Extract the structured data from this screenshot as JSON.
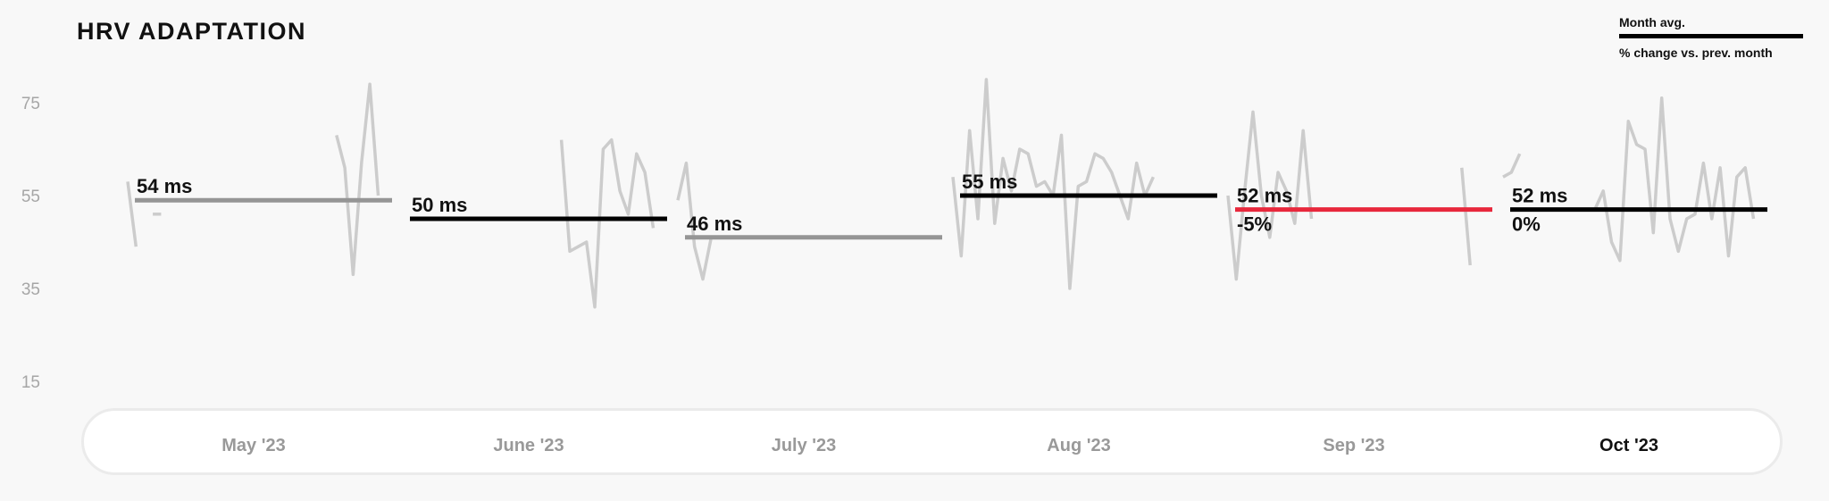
{
  "header": {
    "title": "HRV ADAPTATION"
  },
  "legend": {
    "avg_label": "Month avg.",
    "change_label": "% change vs. prev. month"
  },
  "colors": {
    "raw_line": "#cccccc",
    "avg_past": "#959595",
    "avg_current": "#000000",
    "avg_decrease": "#e8283c",
    "text": "#111111"
  },
  "chart_data": {
    "type": "line",
    "title": "HRV ADAPTATION",
    "y_ticks": [
      75,
      55,
      35,
      15
    ],
    "y_range": [
      15,
      75
    ],
    "x_categories": [
      "May '23",
      "June '23",
      "July '23",
      "Aug '23",
      "Sep '23",
      "Oct '23"
    ],
    "active_month": "Oct '23",
    "monthly": [
      {
        "month": "May '23",
        "avg": 54,
        "avg_label": "54 ms",
        "change": "",
        "style": "past"
      },
      {
        "month": "June '23",
        "avg": 50,
        "avg_label": "50 ms",
        "change": "",
        "style": "current"
      },
      {
        "month": "July '23",
        "avg": 46,
        "avg_label": "46 ms",
        "change": "",
        "style": "past"
      },
      {
        "month": "Aug '23",
        "avg": 55,
        "avg_label": "55 ms",
        "change": "",
        "style": "current"
      },
      {
        "month": "Sep '23",
        "avg": 52,
        "avg_label": "52 ms",
        "change": "-5%",
        "style": "decrease"
      },
      {
        "month": "Oct '23",
        "avg": 52,
        "avg_label": "52 ms",
        "change": "0%",
        "style": "current"
      }
    ],
    "daily_segments": [
      {
        "month": "May '23",
        "x": [
          0,
          1
        ],
        "y": [
          58,
          44
        ]
      },
      {
        "month": "May '23",
        "x": [
          3,
          4
        ],
        "y": [
          51,
          51
        ]
      },
      {
        "month": "May '23",
        "x": [
          25,
          26,
          27,
          28,
          29,
          30
        ],
        "y": [
          68,
          61,
          38,
          62,
          79,
          55
        ]
      },
      {
        "month": "June '23",
        "x": [
          19,
          20,
          21,
          22,
          23,
          24,
          25,
          26,
          27,
          28,
          29,
          30
        ],
        "y": [
          67,
          43,
          44,
          45,
          31,
          65,
          67,
          56,
          51,
          64,
          60,
          48
        ]
      },
      {
        "month": "July '23",
        "x": [
          0,
          1,
          2,
          3,
          4
        ],
        "y": [
          54,
          62,
          44,
          37,
          46
        ]
      },
      {
        "month": "Aug '23",
        "x": [
          0,
          1,
          2,
          3,
          4,
          5,
          6,
          7,
          8,
          9,
          10,
          11,
          12,
          13,
          14,
          15,
          16,
          17,
          18,
          19,
          20,
          21,
          22,
          23,
          24
        ],
        "y": [
          59,
          42,
          69,
          50,
          80,
          49,
          63,
          56,
          65,
          64,
          57,
          58,
          55,
          68,
          35,
          57,
          58,
          64,
          63,
          60,
          55,
          50,
          62,
          55,
          59
        ]
      },
      {
        "month": "Sep '23",
        "x": [
          0,
          1,
          2,
          3,
          4,
          5,
          6,
          7,
          8,
          9,
          10
        ],
        "y": [
          55,
          37,
          56,
          73,
          55,
          46,
          60,
          56,
          49,
          69,
          50
        ]
      },
      {
        "month": "Sep '23",
        "x": [
          28,
          29
        ],
        "y": [
          61,
          40
        ]
      },
      {
        "month": "Oct '23",
        "x": [
          0,
          1,
          2
        ],
        "y": [
          59,
          60,
          64
        ]
      },
      {
        "month": "Oct '23",
        "x": [
          11,
          12,
          13,
          14,
          15,
          16,
          17,
          18,
          19,
          20,
          21,
          22,
          23,
          24,
          25,
          26,
          27,
          28,
          29,
          30
        ],
        "y": [
          52,
          56,
          45,
          41,
          71,
          66,
          65,
          47,
          76,
          50,
          43,
          50,
          51,
          62,
          50,
          61,
          42,
          59,
          61,
          50
        ]
      }
    ]
  }
}
